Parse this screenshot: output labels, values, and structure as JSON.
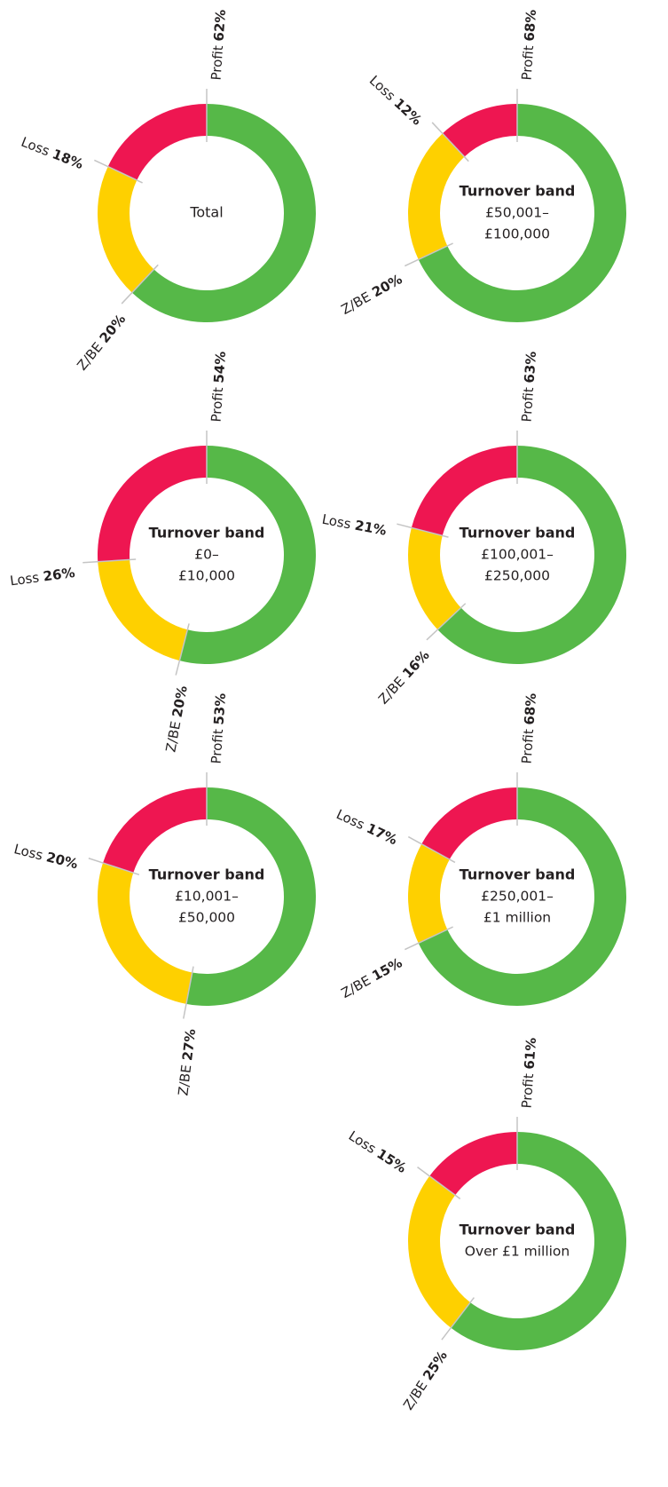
{
  "chart_data": [
    {
      "type": "donut",
      "center_title": "",
      "center_lines": [
        "Total"
      ],
      "segments": [
        {
          "name": "Profit",
          "label": "Profit",
          "value": 62,
          "value_label": "62%"
        },
        {
          "name": "Z/BE",
          "label": "Z/BE",
          "value": 20,
          "value_label": "20%"
        },
        {
          "name": "Loss",
          "label": "Loss",
          "value": 18,
          "value_label": "18%"
        }
      ]
    },
    {
      "type": "donut",
      "center_title": "Turnover band",
      "center_lines": [
        "£50,001–",
        "£100,000"
      ],
      "segments": [
        {
          "name": "Profit",
          "label": "Profit",
          "value": 68,
          "value_label": "68%"
        },
        {
          "name": "Z/BE",
          "label": "Z/BE",
          "value": 20,
          "value_label": "20%"
        },
        {
          "name": "Loss",
          "label": "Loss",
          "value": 12,
          "value_label": "12%"
        }
      ]
    },
    {
      "type": "donut",
      "center_title": "Turnover band",
      "center_lines": [
        "£0–",
        "£10,000"
      ],
      "segments": [
        {
          "name": "Profit",
          "label": "Profit",
          "value": 54,
          "value_label": "54%"
        },
        {
          "name": "Z/BE",
          "label": "Z/BE",
          "value": 20,
          "value_label": "20%"
        },
        {
          "name": "Loss",
          "label": "Loss",
          "value": 26,
          "value_label": "26%"
        }
      ]
    },
    {
      "type": "donut",
      "center_title": "Turnover band",
      "center_lines": [
        "£100,001–",
        "£250,000"
      ],
      "segments": [
        {
          "name": "Profit",
          "label": "Profit",
          "value": 63,
          "value_label": "63%"
        },
        {
          "name": "Z/BE",
          "label": "Z/BE",
          "value": 16,
          "value_label": "16%"
        },
        {
          "name": "Loss",
          "label": "Loss",
          "value": 21,
          "value_label": "21%"
        }
      ]
    },
    {
      "type": "donut",
      "center_title": "Turnover band",
      "center_lines": [
        "£10,001–",
        "£50,000"
      ],
      "segments": [
        {
          "name": "Profit",
          "label": "Profit",
          "value": 53,
          "value_label": "53%"
        },
        {
          "name": "Z/BE",
          "label": "Z/BE",
          "value": 27,
          "value_label": "27%"
        },
        {
          "name": "Loss",
          "label": "Loss",
          "value": 20,
          "value_label": "20%"
        }
      ]
    },
    {
      "type": "donut",
      "center_title": "Turnover band",
      "center_lines": [
        "£250,001–",
        "£1 million"
      ],
      "segments": [
        {
          "name": "Profit",
          "label": "Profit",
          "value": 68,
          "value_label": "68%"
        },
        {
          "name": "Z/BE",
          "label": "Z/BE",
          "value": 15,
          "value_label": "15%"
        },
        {
          "name": "Loss",
          "label": "Loss",
          "value": 17,
          "value_label": "17%"
        }
      ]
    },
    {
      "type": "donut",
      "center_title": "Turnover band",
      "center_lines": [
        "Over £1 million"
      ],
      "segments": [
        {
          "name": "Profit",
          "label": "Profit",
          "value": 61,
          "value_label": "61%"
        },
        {
          "name": "Z/BE",
          "label": "Z/BE",
          "value": 25,
          "value_label": "25%"
        },
        {
          "name": "Loss",
          "label": "Loss",
          "value": 15,
          "value_label": "15%"
        }
      ]
    }
  ],
  "colors": {
    "Profit": "#56b848",
    "Z/BE": "#fed000",
    "Loss": "#ee1651",
    "leader": "#c4c4c4",
    "text": "#231f20"
  }
}
